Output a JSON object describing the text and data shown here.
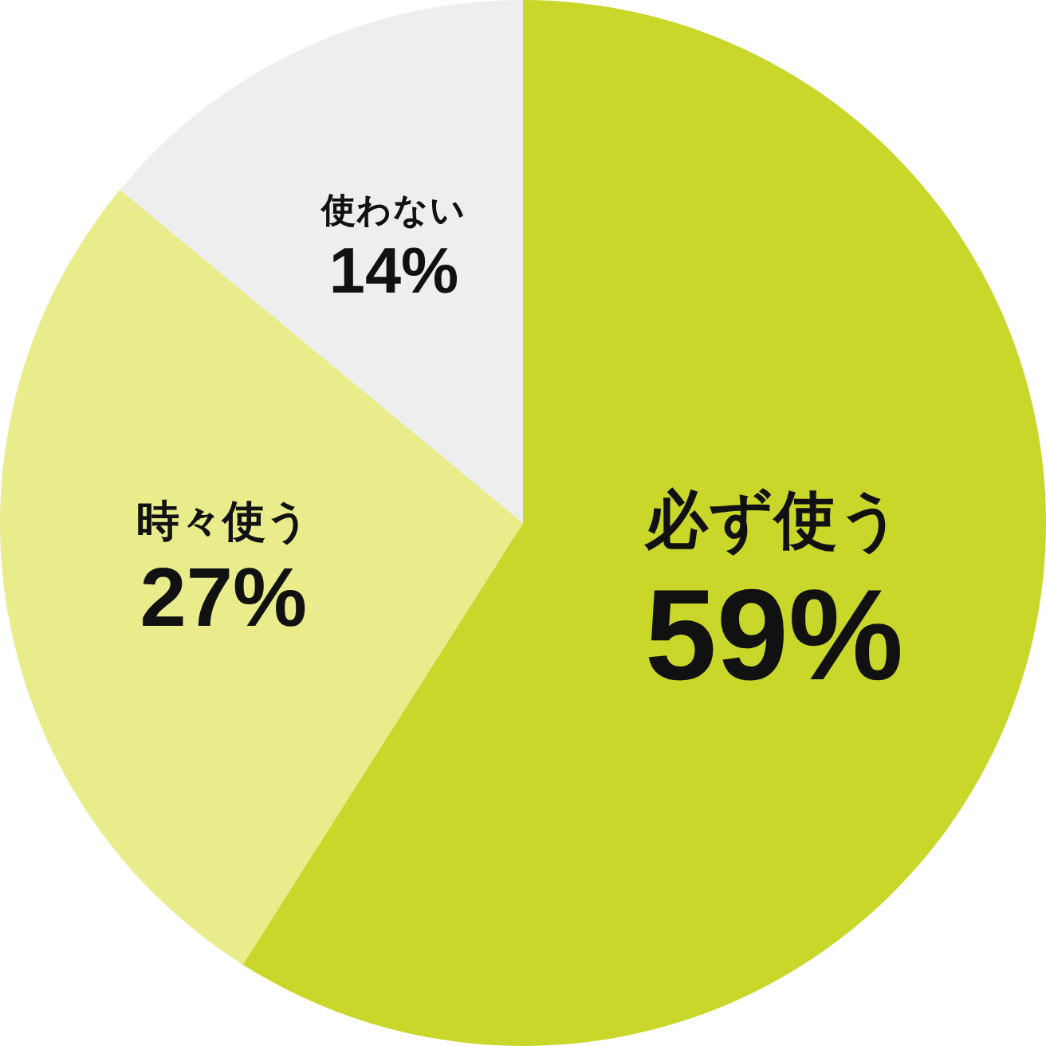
{
  "chart_data": {
    "type": "pie",
    "categories": [
      "必ず使う",
      "時々使う",
      "使わない"
    ],
    "values": [
      59,
      27,
      14
    ],
    "colors": [
      "#c9d62a",
      "#e8ec8b",
      "#eeeeee"
    ],
    "value_labels": [
      "59%",
      "27%",
      "14%"
    ],
    "legend": false
  }
}
